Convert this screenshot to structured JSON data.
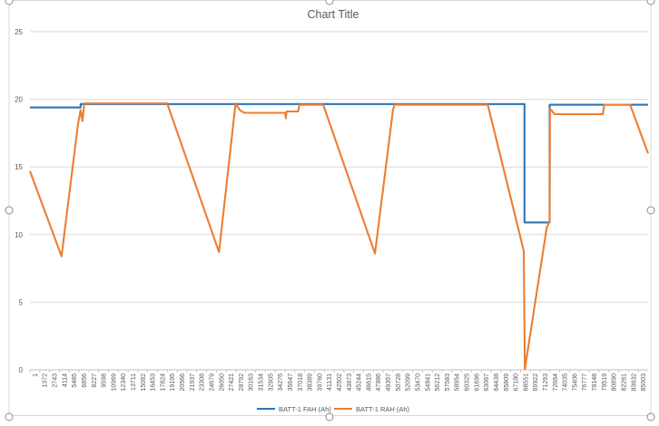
{
  "chart_data": {
    "type": "line",
    "title": "Chart Title",
    "xlabel": "",
    "ylabel": "",
    "ylim": [
      0,
      25
    ],
    "yticks": [
      0,
      5,
      10,
      15,
      20,
      25
    ],
    "xlim": [
      1,
      86000
    ],
    "xtick_labels": [
      1,
      1372,
      2743,
      4114,
      5485,
      6856,
      8227,
      9598,
      10969,
      12340,
      13711,
      15082,
      16453,
      17824,
      19195,
      20566,
      21937,
      23308,
      24679,
      26050,
      27421,
      28792,
      30163,
      31534,
      32905,
      34276,
      35647,
      37018,
      38389,
      39760,
      41131,
      42502,
      43873,
      45244,
      46615,
      47986,
      49357,
      50728,
      52099,
      53470,
      54841,
      56212,
      57583,
      58954,
      60325,
      61696,
      63067,
      64438,
      65809,
      67180,
      68551,
      69922,
      71293,
      72664,
      74035,
      75406,
      76777,
      78148,
      79519,
      80890,
      82261,
      83632,
      85003
    ],
    "grid": true,
    "legend": "bottom",
    "series": [
      {
        "name": "BATT-1 FAH (Ah)",
        "color": "#2E75B6",
        "points": [
          [
            1,
            19.4
          ],
          [
            7050,
            19.4
          ],
          [
            7050,
            19.65
          ],
          [
            68800,
            19.65
          ],
          [
            68800,
            10.9
          ],
          [
            72300,
            10.9
          ],
          [
            72300,
            19.6
          ],
          [
            86000,
            19.6
          ]
        ]
      },
      {
        "name": "BATT-1 RAH (Ah)",
        "color": "#ED7D31",
        "points": [
          [
            1,
            14.7
          ],
          [
            4400,
            8.4
          ],
          [
            6700,
            18.2
          ],
          [
            7050,
            19.2
          ],
          [
            7300,
            18.4
          ],
          [
            7550,
            19.7
          ],
          [
            19100,
            19.7
          ],
          [
            26300,
            8.7
          ],
          [
            28600,
            19.7
          ],
          [
            29200,
            19.2
          ],
          [
            29800,
            19.0
          ],
          [
            35500,
            19.0
          ],
          [
            35600,
            18.6
          ],
          [
            35700,
            19.1
          ],
          [
            37300,
            19.1
          ],
          [
            37500,
            19.6
          ],
          [
            40800,
            19.6
          ],
          [
            48000,
            8.6
          ],
          [
            50500,
            19.2
          ],
          [
            50700,
            19.6
          ],
          [
            63700,
            19.6
          ],
          [
            68700,
            8.8
          ],
          [
            68850,
            0.05
          ],
          [
            71900,
            10.5
          ],
          [
            72300,
            11.0
          ],
          [
            72350,
            19.3
          ],
          [
            73000,
            18.9
          ],
          [
            79700,
            18.9
          ],
          [
            79900,
            19.6
          ],
          [
            83500,
            19.6
          ],
          [
            86000,
            16.0
          ]
        ]
      }
    ]
  }
}
